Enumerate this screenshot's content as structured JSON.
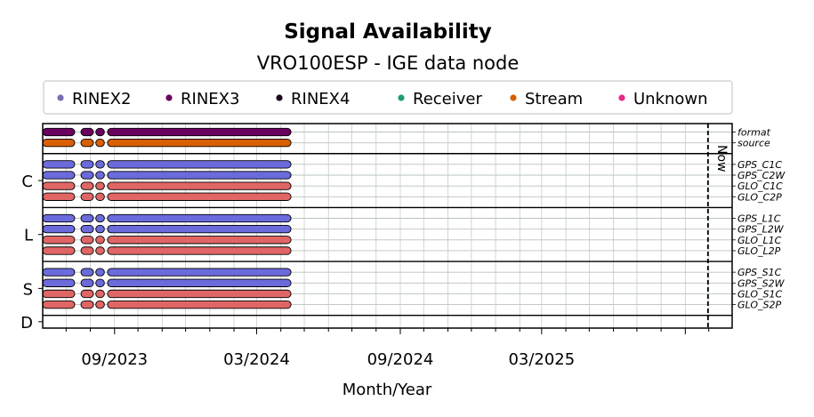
{
  "chart_data": {
    "type": "timeline",
    "title": "Signal Availability",
    "subtitle": "VRO100ESP - IGE data node",
    "xlabel": "Month/Year",
    "x_ticks": [
      "09/2023",
      "03/2024",
      "09/2024",
      "03/2025"
    ],
    "x_range": [
      "2023-06-01",
      "2025-10-31"
    ],
    "now_label": "Now",
    "now_date": "2025-09-30",
    "grid": true,
    "legend_position": "top",
    "legend": [
      {
        "name": "RINEX2",
        "color": "#7570b3"
      },
      {
        "name": "RINEX3",
        "color": "#6a005f"
      },
      {
        "name": "RINEX4",
        "color": "#1a0a1a"
      },
      {
        "name": "Receiver",
        "color": "#1b9e77"
      },
      {
        "name": "Stream",
        "color": "#d95f02"
      },
      {
        "name": "Unknown",
        "color": "#e7298a"
      }
    ],
    "colors": {
      "format": "#6a005f",
      "source": "#d95f02",
      "gps": "#6b6bdc",
      "glo": "#e06666",
      "edge": "#000000"
    },
    "groups": [
      {
        "label": "",
        "rows": [
          "format",
          "source"
        ]
      },
      {
        "label": "C",
        "rows": [
          "GPS_C1C",
          "GPS_C2W",
          "GLO_C1C",
          "GLO_C2P"
        ]
      },
      {
        "label": "L",
        "rows": [
          "GPS_L1C",
          "GPS_L2W",
          "GLO_L1C",
          "GLO_L2P"
        ]
      },
      {
        "label": "S",
        "rows": [
          "GPS_S1C",
          "GPS_S2W",
          "GLO_S1C",
          "GLO_S2P"
        ]
      },
      {
        "label": "D",
        "rows": []
      }
    ],
    "row_colors": {
      "format": "format",
      "source": "source",
      "GPS_C1C": "gps",
      "GPS_C2W": "gps",
      "GLO_C1C": "glo",
      "GLO_C2P": "glo",
      "GPS_L1C": "gps",
      "GPS_L2W": "gps",
      "GLO_L1C": "glo",
      "GLO_L2P": "glo",
      "GPS_S1C": "gps",
      "GPS_S2W": "gps",
      "GLO_S1C": "glo",
      "GLO_S2P": "glo"
    },
    "segments": [
      [
        "2023-06-01",
        "2023-07-12"
      ],
      [
        "2023-07-20",
        "2023-08-05"
      ],
      [
        "2023-08-08",
        "2023-08-19"
      ],
      [
        "2023-08-23",
        "2024-04-14"
      ]
    ]
  }
}
